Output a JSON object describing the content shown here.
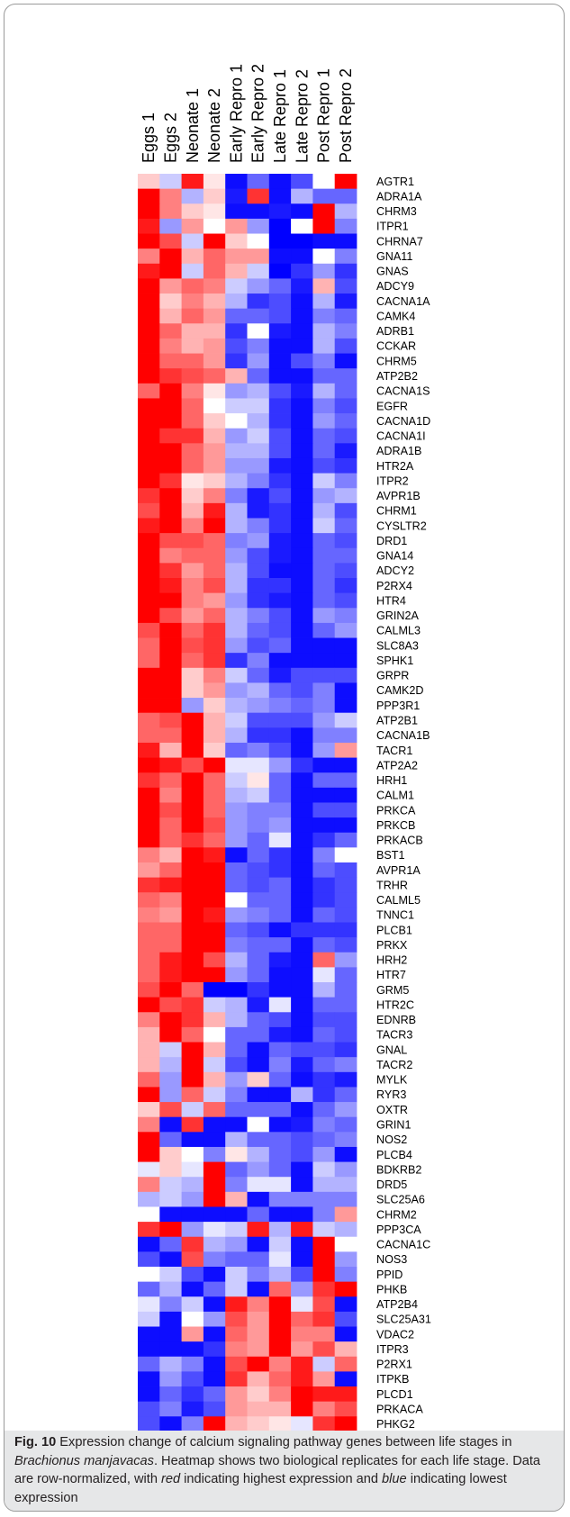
{
  "chart_data": {
    "type": "heatmap",
    "title": "",
    "xlabel": "",
    "ylabel": "",
    "color_scale": {
      "low": "#0000ff",
      "mid": "#ffffff",
      "high": "#ff0000",
      "range": [
        -1,
        1
      ]
    },
    "columns": [
      "Eggs 1",
      "Eggs 2",
      "Neonate 1",
      "Neonate 2",
      "Early Repro 1",
      "Early Repro 2",
      "Late Repro 1",
      "Late Repro 2",
      "Post Repro 1",
      "Post Repro 2"
    ],
    "rows": [
      "AGTR1",
      "ADRA1A",
      "CHRM3",
      "ITPR1",
      "CHRNA7",
      "GNA11",
      "GNAS",
      "ADCY9",
      "CACNA1A",
      "CAMK4",
      "ADRB1",
      "CCKAR",
      "CHRM5",
      "ATP2B2",
      "CACNA1S",
      "EGFR",
      "CACNA1D",
      "CACNA1I",
      "ADRA1B",
      "HTR2A",
      "ITPR2",
      "AVPR1B",
      "CHRM1",
      "CYSLTR2",
      "DRD1",
      "GNA14",
      "ADCY2",
      "P2RX4",
      "HTR4",
      "GRIN2A",
      "CALML3",
      "SLC8A3",
      "SPHK1",
      "GRPR",
      "CAMK2D",
      "PPP3R1",
      "ATP2B1",
      "CACNA1B",
      "TACR1",
      "ATP2A2",
      "HRH1",
      "CALM1",
      "PRKCA",
      "PRKCB",
      "PRKACB",
      "BST1",
      "AVPR1A",
      "TRHR",
      "CALML5",
      "TNNC1",
      "PLCB1",
      "PRKX",
      "HRH2",
      "HTR7",
      "GRM5",
      "HTR2C",
      "EDNRB",
      "TACR3",
      "GNAL",
      "TACR2",
      "MYLK",
      "RYR3",
      "OXTR",
      "GRIN1",
      "NOS2",
      "PLCB4",
      "BDKRB2",
      "DRD5",
      "SLC25A6",
      "CHRM2",
      "PPP3CA",
      "CACNA1C",
      "NOS3",
      "PPID",
      "PHKB",
      "ATP2B4",
      "SLC25A31",
      "VDAC2",
      "ITPR3",
      "P2RX1",
      "ITPKB",
      "PLCD1",
      "PRKACA",
      "PHKG2"
    ],
    "values": [
      [
        0.2,
        -0.2,
        0.9,
        0.1,
        -0.95,
        -0.6,
        -0.95,
        -0.7,
        0.0,
        1.0
      ],
      [
        1.0,
        0.5,
        -0.3,
        0.2,
        -0.9,
        0.8,
        -0.95,
        -0.3,
        -0.6,
        -0.6
      ],
      [
        1.0,
        0.5,
        0.2,
        0.1,
        -0.95,
        -0.95,
        -0.9,
        -0.95,
        1.0,
        -0.3
      ],
      [
        0.9,
        -0.4,
        0.4,
        0.0,
        0.4,
        -0.4,
        -1.0,
        0.0,
        1.0,
        -0.5
      ],
      [
        1.0,
        0.7,
        -0.2,
        1.0,
        0.2,
        0.0,
        -1.0,
        -1.0,
        -0.95,
        -0.95
      ],
      [
        0.5,
        1.0,
        0.3,
        0.6,
        0.4,
        0.4,
        -0.95,
        -0.95,
        0.0,
        -0.5
      ],
      [
        0.9,
        1.0,
        -0.2,
        0.6,
        0.3,
        -0.2,
        -1.0,
        -0.8,
        -0.4,
        -0.8
      ],
      [
        1.0,
        0.4,
        0.6,
        0.5,
        -0.2,
        -0.4,
        -0.6,
        -0.9,
        0.3,
        -0.7
      ],
      [
        1.0,
        0.2,
        0.5,
        0.3,
        -0.3,
        -0.8,
        -0.7,
        -0.95,
        -0.3,
        -0.9
      ],
      [
        1.0,
        0.3,
        0.6,
        0.4,
        -0.6,
        -0.6,
        -0.7,
        -0.95,
        -0.5,
        -0.6
      ],
      [
        1.0,
        0.6,
        0.3,
        0.3,
        -0.8,
        0.0,
        -0.9,
        -0.95,
        -0.3,
        -0.5
      ],
      [
        1.0,
        0.5,
        0.3,
        0.4,
        -0.7,
        -0.5,
        -0.95,
        -0.95,
        -0.3,
        -0.7
      ],
      [
        1.0,
        0.6,
        0.6,
        0.4,
        -0.8,
        -0.4,
        -0.95,
        -0.7,
        -0.5,
        -0.95
      ],
      [
        1.0,
        0.8,
        0.7,
        0.6,
        0.3,
        -0.6,
        -0.95,
        -0.95,
        -0.6,
        -0.6
      ],
      [
        0.6,
        1.0,
        0.5,
        0.1,
        -0.4,
        -0.3,
        -0.7,
        -0.9,
        -0.3,
        -0.6
      ],
      [
        1.0,
        1.0,
        0.6,
        0.0,
        -0.2,
        -0.2,
        -0.8,
        -0.95,
        -0.5,
        -0.7
      ],
      [
        1.0,
        1.0,
        0.6,
        0.2,
        0.0,
        -0.3,
        -0.8,
        -0.95,
        -0.4,
        -0.6
      ],
      [
        1.0,
        0.8,
        0.8,
        0.3,
        -0.4,
        -0.2,
        -0.7,
        -0.95,
        -0.6,
        -0.7
      ],
      [
        1.0,
        1.0,
        0.6,
        0.4,
        -0.3,
        -0.3,
        -0.7,
        -0.95,
        -0.6,
        -0.9
      ],
      [
        1.0,
        1.0,
        0.6,
        0.4,
        -0.4,
        -0.4,
        -0.9,
        -0.95,
        -0.7,
        -0.8
      ],
      [
        1.0,
        0.8,
        0.1,
        0.2,
        -0.3,
        -0.5,
        -0.8,
        -0.95,
        -0.2,
        -0.5
      ],
      [
        0.8,
        1.0,
        0.2,
        0.5,
        -0.5,
        -0.9,
        -0.7,
        -0.95,
        -0.4,
        -0.3
      ],
      [
        0.7,
        1.0,
        0.3,
        0.9,
        -0.3,
        -0.9,
        -0.8,
        -0.95,
        -0.3,
        -0.7
      ],
      [
        0.9,
        1.0,
        0.5,
        1.0,
        -0.3,
        -0.5,
        -0.8,
        -0.95,
        -0.2,
        -0.6
      ],
      [
        1.0,
        0.7,
        0.7,
        0.6,
        -0.5,
        -0.4,
        -0.9,
        -0.95,
        -0.6,
        -0.7
      ],
      [
        1.0,
        0.5,
        0.6,
        0.6,
        -0.4,
        -0.7,
        -0.9,
        -0.95,
        -0.6,
        -0.6
      ],
      [
        1.0,
        0.8,
        0.4,
        0.6,
        -0.3,
        -0.7,
        -0.95,
        -0.95,
        -0.6,
        -0.7
      ],
      [
        1.0,
        0.9,
        0.5,
        0.7,
        -0.3,
        -0.8,
        -0.8,
        -0.95,
        -0.6,
        -0.8
      ],
      [
        1.0,
        1.0,
        0.5,
        0.4,
        -0.4,
        -0.8,
        -0.9,
        -0.95,
        -0.6,
        -0.7
      ],
      [
        1.0,
        0.7,
        0.4,
        0.6,
        -0.3,
        -0.5,
        -0.7,
        -0.95,
        -0.4,
        -0.5
      ],
      [
        0.7,
        1.0,
        0.6,
        0.8,
        -0.3,
        -0.6,
        -0.7,
        -0.95,
        -0.6,
        -0.4
      ],
      [
        0.6,
        1.0,
        0.7,
        0.8,
        -0.4,
        -0.7,
        -0.6,
        -0.95,
        -0.95,
        -0.95
      ],
      [
        0.6,
        1.0,
        0.6,
        0.8,
        -0.8,
        -0.5,
        -0.95,
        -0.95,
        -0.95,
        -0.95
      ],
      [
        1.0,
        1.0,
        0.2,
        0.5,
        -0.2,
        -0.6,
        -0.9,
        -0.7,
        -0.7,
        -0.7
      ],
      [
        1.0,
        1.0,
        0.2,
        0.4,
        -0.4,
        -0.3,
        -0.6,
        -0.7,
        -0.5,
        -0.95
      ],
      [
        1.0,
        1.0,
        -0.4,
        0.2,
        -0.3,
        -0.4,
        -0.5,
        -0.6,
        -0.5,
        -0.95
      ],
      [
        0.6,
        0.7,
        1.0,
        0.3,
        -0.2,
        -0.7,
        -0.7,
        -0.7,
        -0.4,
        -0.2
      ],
      [
        0.6,
        0.6,
        1.0,
        0.3,
        -0.3,
        -0.8,
        -0.8,
        -0.95,
        -0.5,
        -0.5
      ],
      [
        0.9,
        0.3,
        1.0,
        0.2,
        -0.6,
        -0.5,
        -0.7,
        -0.95,
        -0.4,
        0.4
      ],
      [
        1.0,
        0.9,
        0.7,
        1.0,
        -0.1,
        -0.1,
        -0.4,
        -0.8,
        -0.95,
        -0.95
      ],
      [
        0.8,
        0.6,
        1.0,
        0.6,
        -0.2,
        0.1,
        -0.6,
        -0.95,
        -0.6,
        -0.6
      ],
      [
        1.0,
        0.5,
        1.0,
        0.6,
        -0.3,
        -0.2,
        -0.6,
        -0.95,
        -0.95,
        -0.95
      ],
      [
        1.0,
        0.7,
        1.0,
        0.6,
        -0.4,
        -0.5,
        -0.5,
        -0.95,
        -0.7,
        -0.7
      ],
      [
        1.0,
        0.6,
        1.0,
        0.7,
        -0.4,
        -0.5,
        -0.4,
        -0.95,
        -0.95,
        -0.95
      ],
      [
        1.0,
        0.6,
        0.8,
        0.6,
        -0.4,
        -0.6,
        -0.1,
        -0.95,
        -0.8,
        -0.6
      ],
      [
        0.5,
        0.3,
        1.0,
        0.9,
        -0.95,
        -0.6,
        -0.8,
        -0.95,
        -0.5,
        0.0
      ],
      [
        0.4,
        0.6,
        1.0,
        1.0,
        -0.6,
        -0.7,
        -0.8,
        -0.95,
        -0.6,
        -0.7
      ],
      [
        0.8,
        0.9,
        1.0,
        1.0,
        -0.6,
        -0.7,
        -0.6,
        -0.95,
        -0.8,
        -0.7
      ],
      [
        0.6,
        0.5,
        1.0,
        1.0,
        0.0,
        -0.6,
        -0.6,
        -0.95,
        -0.8,
        -0.7
      ],
      [
        0.5,
        0.4,
        1.0,
        0.9,
        -0.4,
        -0.5,
        -0.6,
        -0.95,
        -0.6,
        -0.7
      ],
      [
        0.6,
        0.6,
        1.0,
        1.0,
        -0.6,
        -0.7,
        -0.95,
        -0.8,
        -0.8,
        -0.8
      ],
      [
        0.6,
        0.6,
        1.0,
        1.0,
        -0.5,
        -0.6,
        -0.6,
        -0.95,
        -0.6,
        -0.7
      ],
      [
        0.6,
        0.9,
        1.0,
        0.7,
        -0.3,
        -0.6,
        -0.9,
        -0.95,
        0.6,
        -0.4
      ],
      [
        0.6,
        0.9,
        1.0,
        1.0,
        -0.4,
        -0.6,
        -0.95,
        -0.95,
        -0.1,
        -0.6
      ],
      [
        0.7,
        1.0,
        0.6,
        -1.0,
        -1.0,
        -0.8,
        -0.95,
        -0.95,
        -0.3,
        -0.6
      ],
      [
        1.0,
        0.7,
        0.8,
        -0.2,
        -0.3,
        -0.9,
        -0.1,
        -0.95,
        -0.6,
        -0.6
      ],
      [
        0.5,
        1.0,
        0.8,
        0.3,
        -0.3,
        -0.6,
        -0.7,
        -0.95,
        -0.7,
        -0.7
      ],
      [
        0.3,
        1.0,
        0.6,
        0.0,
        -0.6,
        -0.6,
        -0.9,
        -0.95,
        -0.6,
        -0.7
      ],
      [
        0.3,
        -0.2,
        1.0,
        0.3,
        -0.6,
        -0.95,
        -0.6,
        -0.7,
        -0.7,
        -0.8
      ],
      [
        0.3,
        -0.3,
        1.0,
        -0.2,
        -0.7,
        -0.95,
        -0.5,
        -0.9,
        -0.6,
        -0.5
      ],
      [
        0.6,
        -0.4,
        1.0,
        0.3,
        -0.4,
        0.2,
        -0.6,
        -0.95,
        -0.8,
        -0.9
      ],
      [
        1.0,
        -0.4,
        0.6,
        -0.2,
        -0.5,
        -0.95,
        -0.95,
        -0.3,
        -0.8,
        -0.6
      ],
      [
        0.2,
        0.7,
        -0.2,
        0.6,
        -0.6,
        -0.6,
        -0.6,
        -0.95,
        -0.6,
        -0.4
      ],
      [
        0.5,
        -0.95,
        0.8,
        -0.95,
        -0.95,
        0.0,
        -0.95,
        -0.9,
        -0.5,
        -0.6
      ],
      [
        1.0,
        -0.6,
        -0.95,
        -0.95,
        -0.3,
        -0.6,
        -0.6,
        -0.7,
        -0.6,
        -0.5
      ],
      [
        1.0,
        0.2,
        0.0,
        -0.5,
        0.1,
        -0.3,
        -0.6,
        -0.7,
        -0.4,
        -0.95
      ],
      [
        -0.1,
        0.2,
        -0.1,
        1.0,
        -0.6,
        -0.4,
        -0.6,
        -0.95,
        -0.2,
        -0.4
      ],
      [
        0.5,
        -0.2,
        -0.3,
        1.0,
        -0.5,
        -0.1,
        -0.1,
        -0.95,
        -0.3,
        -0.3
      ],
      [
        -0.3,
        -0.2,
        -0.4,
        1.0,
        0.3,
        -0.95,
        -0.5,
        -0.5,
        -0.5,
        -0.5
      ],
      [
        0.0,
        -0.95,
        -0.95,
        -0.95,
        -0.95,
        -0.6,
        -0.95,
        -0.95,
        -0.5,
        0.4
      ],
      [
        0.8,
        1.0,
        -0.4,
        -0.1,
        -0.2,
        0.9,
        -0.3,
        0.9,
        -0.2,
        -0.3
      ],
      [
        -0.95,
        -0.6,
        0.8,
        -0.3,
        -0.4,
        -0.95,
        -0.2,
        -0.95,
        1.0,
        0.0
      ],
      [
        -0.7,
        -0.95,
        0.7,
        -0.5,
        -0.6,
        -0.6,
        -0.1,
        -0.95,
        1.0,
        -0.4
      ],
      [
        0.0,
        -0.2,
        -0.7,
        -0.95,
        -0.2,
        -0.5,
        -0.3,
        -0.7,
        1.0,
        -0.5
      ],
      [
        -0.6,
        -0.3,
        -0.95,
        -0.6,
        -0.2,
        -0.95,
        0.6,
        -0.4,
        0.8,
        1.0
      ],
      [
        -0.1,
        -0.5,
        -0.2,
        -0.95,
        0.9,
        0.5,
        1.0,
        -0.1,
        0.7,
        -0.95
      ],
      [
        -0.2,
        -0.95,
        0.0,
        -0.4,
        0.7,
        0.4,
        1.0,
        0.6,
        0.8,
        -0.7
      ],
      [
        -0.95,
        -0.95,
        0.4,
        -0.95,
        0.6,
        0.4,
        1.0,
        0.5,
        0.5,
        -0.95
      ],
      [
        -0.95,
        -0.95,
        -0.95,
        -0.8,
        0.5,
        0.4,
        1.0,
        0.4,
        0.7,
        0.3
      ],
      [
        -0.6,
        -0.3,
        -0.5,
        -0.95,
        0.7,
        1.0,
        0.5,
        0.9,
        -0.2,
        0.6
      ],
      [
        -0.95,
        -0.4,
        -0.7,
        -0.95,
        0.8,
        0.3,
        0.6,
        0.9,
        0.4,
        -0.95
      ],
      [
        -0.95,
        -0.6,
        -0.8,
        -0.6,
        0.4,
        0.2,
        0.5,
        1.0,
        0.9,
        0.9
      ],
      [
        -0.7,
        -0.5,
        -0.9,
        -0.7,
        0.4,
        0.3,
        0.3,
        1.0,
        0.5,
        0.7
      ],
      [
        -0.7,
        -0.95,
        -0.5,
        1.0,
        0.3,
        0.2,
        0.1,
        -0.1,
        0.8,
        1.0
      ]
    ]
  },
  "caption": {
    "label": "Fig. 10",
    "p1": " Expression change of calcium signaling pathway genes between life stages in ",
    "species": "Brachionus manjavacas",
    "p2": ". Heatmap shows two biological replicates for each life stage. Data are row-normalized, with ",
    "red": "red",
    "p3": " indicating highest expression and ",
    "blue": "blue",
    "p4": " indicating lowest expression"
  }
}
